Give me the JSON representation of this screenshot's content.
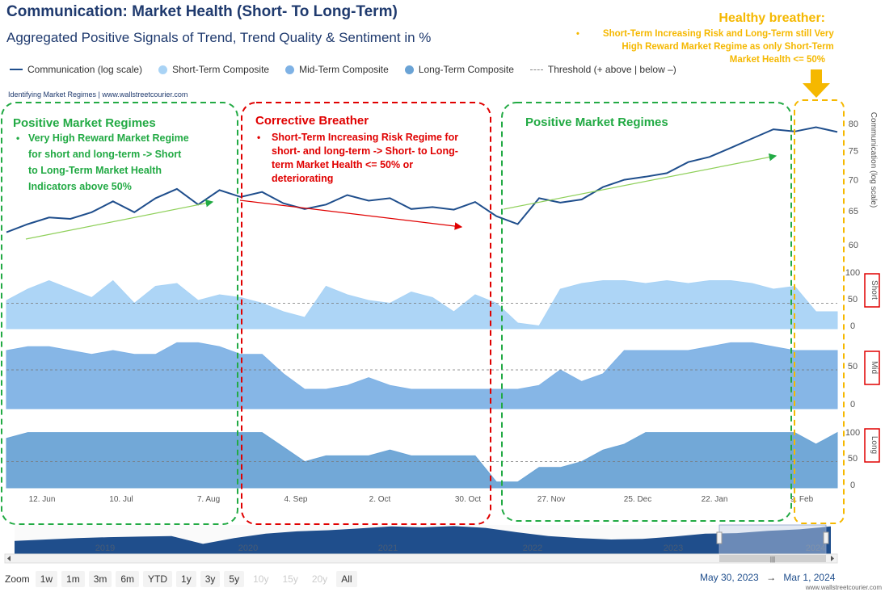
{
  "title": "Communication: Market Health (Short- To Long-Term)",
  "subtitle": "Aggregated Positive Signals of Trend, Trend Quality & Sentiment in %",
  "legend": {
    "items": [
      {
        "label": "Communication (log scale)",
        "color": "#1f4e8c",
        "kind": "line"
      },
      {
        "label": "Short-Term Composite",
        "color": "#a9d3f5",
        "kind": "area"
      },
      {
        "label": "Mid-Term Composite",
        "color": "#7fb2e5",
        "kind": "area"
      },
      {
        "label": "Long-Term Composite",
        "color": "#6aa3d5",
        "kind": "area"
      },
      {
        "label": "Threshold (+ above | below –)",
        "color": "#888888",
        "kind": "dash"
      }
    ]
  },
  "credit": "Identifying Market Regimes | www.wallstreetcourier.com",
  "watermark": "www.wallstreetcourier.com",
  "annotations": {
    "pos1_title": "Positive Market Regimes",
    "pos1_bullet": "Very High Reward Market Regime for short and long-term -> Short to Long-Term Market Health Indicators above 50%",
    "corr_title": "Corrective Breather",
    "corr_bullet": "Short-Term Increasing Risk Regime for short- and long-term ->  Short- to Long-term Market Health <= 50% or deteriorating",
    "pos2_title": "Positive Market Regimes",
    "healthy_title": "Healthy breather:",
    "healthy_bullet": "Short-Term Increasing Risk and Long-Term still Very High Reward Market Regime as only Short-Term Market Health <= 50%",
    "colors": {
      "green": "#22aa44",
      "red": "#e00000",
      "orange": "#f5b800"
    }
  },
  "navigator": {
    "year_labels": [
      "2019",
      "2020",
      "2021",
      "2022",
      "2023",
      "2024"
    ]
  },
  "zoom": {
    "label": "Zoom",
    "buttons": [
      {
        "label": "1w",
        "enabled": true
      },
      {
        "label": "1m",
        "enabled": true
      },
      {
        "label": "3m",
        "enabled": true
      },
      {
        "label": "6m",
        "enabled": true
      },
      {
        "label": "YTD",
        "enabled": true
      },
      {
        "label": "1y",
        "enabled": true
      },
      {
        "label": "3y",
        "enabled": true
      },
      {
        "label": "5y",
        "enabled": true
      },
      {
        "label": "10y",
        "enabled": false
      },
      {
        "label": "15y",
        "enabled": false
      },
      {
        "label": "20y",
        "enabled": false
      },
      {
        "label": "All",
        "enabled": true
      }
    ]
  },
  "range": {
    "from": "May 30, 2023",
    "arrow": "→",
    "to": "Mar 1, 2024"
  },
  "chart_data": {
    "type": "line",
    "x_tick_labels": [
      "12. Jun",
      "10. Jul",
      "7. Aug",
      "4. Sep",
      "2. Oct",
      "30. Oct",
      "27. Nov",
      "25. Dec",
      "22. Jan",
      "9. Feb"
    ],
    "x_range": [
      "2023-05-30",
      "2024-03-01"
    ],
    "price": {
      "name": "Communication (log scale)",
      "axis_label": "Communication (log scale)",
      "ylim": [
        60,
        82
      ],
      "yticks": [
        60,
        65,
        70,
        75,
        80
      ],
      "x_weeks": [
        0,
        1,
        2,
        3,
        4,
        5,
        6,
        7,
        8,
        9,
        10,
        11,
        12,
        13,
        14,
        15,
        16,
        17,
        18,
        19,
        20,
        21,
        22,
        23,
        24,
        25,
        26,
        27,
        28,
        29,
        30,
        31,
        32,
        33,
        34,
        35,
        36,
        37,
        38,
        39
      ],
      "values": [
        61.8,
        63,
        64,
        63.8,
        64.8,
        66.5,
        64.8,
        67,
        68.5,
        66,
        68.3,
        67.2,
        68,
        66.2,
        65.3,
        66,
        67.5,
        66.6,
        67,
        65.3,
        65.6,
        65.2,
        66.4,
        64.2,
        63,
        67,
        66.3,
        66.8,
        68.8,
        70,
        70.5,
        71.1,
        73,
        73.9,
        75.5,
        77.2,
        78.9,
        78.5,
        79.3,
        78.4
      ]
    },
    "short": {
      "name": "Short-Term Composite",
      "label": "Short",
      "ylim": [
        0,
        100
      ],
      "yticks": [
        0,
        50,
        100
      ],
      "threshold": 45,
      "values": [
        50,
        70,
        85,
        70,
        55,
        85,
        45,
        75,
        80,
        50,
        60,
        55,
        45,
        30,
        20,
        75,
        60,
        50,
        45,
        65,
        55,
        30,
        60,
        45,
        10,
        5,
        70,
        80,
        85,
        85,
        80,
        85,
        80,
        85,
        85,
        80,
        70,
        75,
        30,
        30
      ]
    },
    "mid": {
      "name": "Mid-Term Composite",
      "label": "Mid",
      "ylim": [
        0,
        100
      ],
      "yticks": [
        0,
        50
      ],
      "threshold": 50,
      "values": [
        75,
        80,
        80,
        75,
        70,
        75,
        70,
        70,
        85,
        85,
        80,
        70,
        70,
        45,
        25,
        25,
        30,
        40,
        30,
        25,
        25,
        25,
        25,
        25,
        25,
        30,
        50,
        35,
        45,
        75,
        75,
        75,
        75,
        80,
        85,
        85,
        80,
        75,
        75,
        75
      ]
    },
    "long": {
      "name": "Long-Term Composite",
      "label": "Long",
      "ylim": [
        0,
        100
      ],
      "yticks": [
        0,
        50,
        100
      ],
      "threshold": 45,
      "values": [
        85,
        95,
        95,
        95,
        95,
        95,
        95,
        95,
        95,
        95,
        95,
        95,
        95,
        70,
        45,
        55,
        55,
        55,
        65,
        55,
        55,
        55,
        55,
        10,
        10,
        35,
        35,
        45,
        65,
        75,
        95,
        95,
        95,
        95,
        95,
        95,
        95,
        95,
        75,
        95
      ]
    }
  }
}
